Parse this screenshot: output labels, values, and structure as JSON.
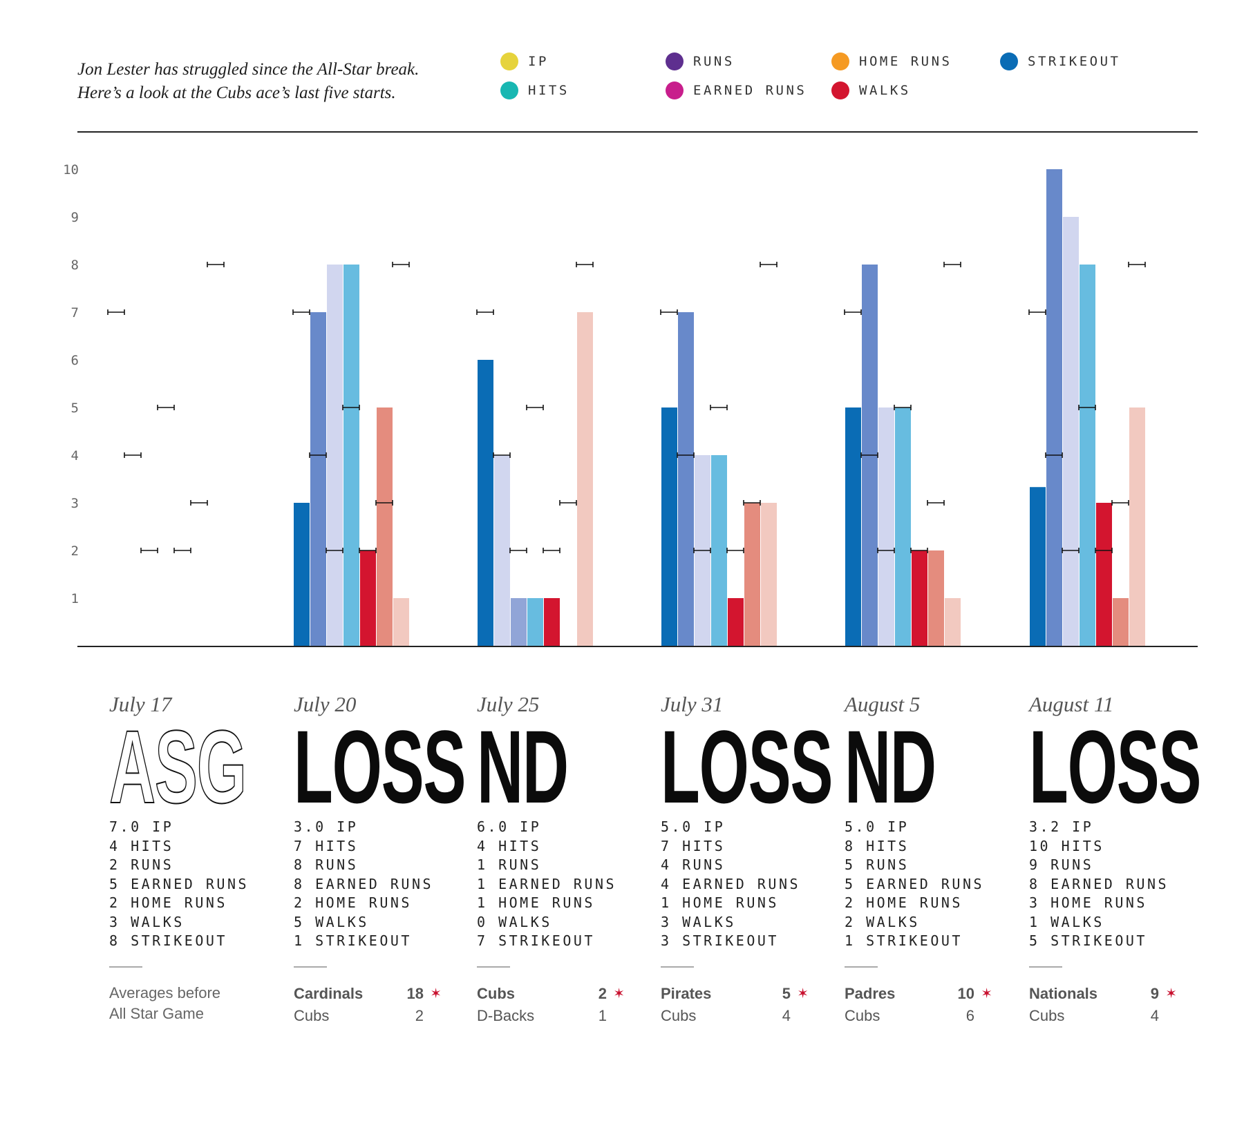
{
  "intro": {
    "line1": "Jon Lester has struggled since the All-Star break.",
    "line2": "Here’s a look at the Cubs ace’s last five starts."
  },
  "legend": [
    {
      "label": "IP",
      "color": "#e6d33c"
    },
    {
      "label": "HITS",
      "color": "#18b7b2"
    },
    {
      "label": "RUNS",
      "color": "#5e2f8f"
    },
    {
      "label": "EARNED RUNS",
      "color": "#c81e8c"
    },
    {
      "label": "HOME RUNS",
      "color": "#f59a23"
    },
    {
      "label": "WALKS",
      "color": "#d3152f"
    },
    {
      "label": "STRIKEOUT",
      "color": "#0a6cb5"
    }
  ],
  "chart_data": {
    "type": "bar",
    "ylim": [
      0,
      10
    ],
    "y_ticks": [
      "1",
      "2",
      "3",
      "4",
      "5",
      "6",
      "7",
      "8",
      "9",
      "10"
    ],
    "categories": [
      "July 17",
      "July 20",
      "July 25",
      "July 31",
      "August 5",
      "August 11"
    ],
    "bar_colors": [
      "#0a6cb5",
      "#6889ca",
      "#d1d6ef",
      "#67bce0",
      "#d3152f",
      "#e48c7e",
      "#f2c9c0"
    ],
    "bars": [
      [
        null,
        null,
        null,
        null,
        null,
        null,
        null
      ],
      [
        3,
        7,
        8,
        8,
        2,
        5,
        1
      ],
      [
        6,
        4,
        1,
        1,
        1,
        0,
        7
      ],
      [
        5,
        7,
        4,
        4,
        1,
        3,
        3
      ],
      [
        5,
        8,
        5,
        5,
        2,
        2,
        1
      ],
      [
        3.33,
        10,
        9,
        8,
        3,
        1,
        5
      ]
    ],
    "bar_shades": [
      [],
      [],
      [
        "#0a6cb5",
        "#d1d6ef",
        "#91a5d7",
        "#67bce0",
        "#d3152f",
        "#e48c7e",
        "#f2c9c0"
      ],
      [
        "#0a6cb5",
        "#6889ca",
        "#d1d6ef",
        "#67bce0",
        "#d3152f",
        "#e48c7e",
        "#f2c9c0"
      ],
      [],
      []
    ],
    "averages": [
      7,
      4,
      2,
      5,
      2,
      3,
      8
    ]
  },
  "games": [
    {
      "date": "July 17",
      "result": "ASG",
      "outline": true,
      "stats": [
        "7.0 IP",
        "4 HITS",
        "2 RUNS",
        "5 EARNED RUNS",
        "2 HOME RUNS",
        "3 WALKS",
        "8 STRIKEOUT"
      ],
      "note": [
        "Averages before",
        "All Star Game"
      ]
    },
    {
      "date": "July 20",
      "result": "LOSS",
      "stats": [
        "3.0 IP",
        "7 HITS",
        "8 RUNS",
        "8 EARNED RUNS",
        "2 HOME RUNS",
        "5 WALKS",
        "1 STRIKEOUT"
      ],
      "score": [
        {
          "team": "Cardinals",
          "runs": "18",
          "winner": true
        },
        {
          "team": "Cubs",
          "runs": "2",
          "winner": false
        }
      ]
    },
    {
      "date": "July 25",
      "result": "ND",
      "stats": [
        "6.0 IP",
        "4 HITS",
        "1 RUNS",
        "1 EARNED RUNS",
        "1 HOME RUNS",
        "0 WALKS",
        "7 STRIKEOUT"
      ],
      "score": [
        {
          "team": "Cubs",
          "runs": "2",
          "winner": true
        },
        {
          "team": "D-Backs",
          "runs": "1",
          "winner": false
        }
      ]
    },
    {
      "date": "July 31",
      "result": "LOSS",
      "stats": [
        "5.0 IP",
        "7 HITS",
        "4 RUNS",
        "4 EARNED RUNS",
        "1 HOME RUNS",
        "3 WALKS",
        "3 STRIKEOUT"
      ],
      "score": [
        {
          "team": "Pirates",
          "runs": "5",
          "winner": true
        },
        {
          "team": "Cubs",
          "runs": "4",
          "winner": false
        }
      ]
    },
    {
      "date": "August 5",
      "result": "ND",
      "stats": [
        "5.0 IP",
        "8 HITS",
        "5 RUNS",
        "5 EARNED RUNS",
        "2 HOME RUNS",
        "2 WALKS",
        "1 STRIKEOUT"
      ],
      "score": [
        {
          "team": "Padres",
          "runs": "10",
          "winner": true
        },
        {
          "team": "Cubs",
          "runs": "6",
          "winner": false
        }
      ]
    },
    {
      "date": "August 11",
      "result": "LOSS",
      "stats": [
        "3.2 IP",
        "10 HITS",
        "9 RUNS",
        "8 EARNED RUNS",
        "3 HOME RUNS",
        "1 WALKS",
        "5 STRIKEOUT"
      ],
      "score": [
        {
          "team": "Nationals",
          "runs": "9",
          "winner": true
        },
        {
          "team": "Cubs",
          "runs": "4",
          "winner": false
        }
      ]
    }
  ],
  "star_glyph": "✶"
}
